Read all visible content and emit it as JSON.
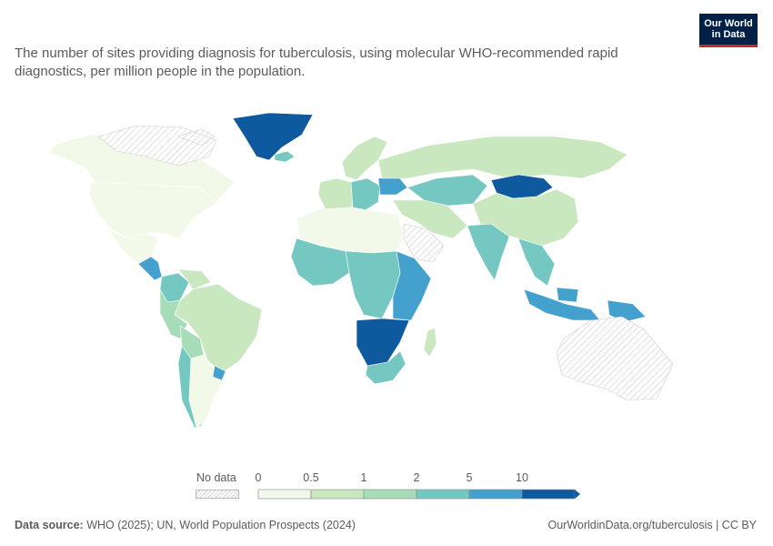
{
  "title": "The number of sites providing diagnosis for tuberculosis, using molecular WHO-recommended rapid diagnostics, per million people in the population.",
  "logo": {
    "line1": "Our World",
    "line2": "in Data"
  },
  "legend": {
    "no_data_label": "No data",
    "ticks": [
      "0",
      "0.5",
      "1",
      "2",
      "5",
      "10"
    ],
    "colors": [
      "#f2f9e8",
      "#c9e8c0",
      "#a6dcb7",
      "#74c8c1",
      "#44a0cc",
      "#0f5a9e"
    ]
  },
  "footer": {
    "source_label": "Data source:",
    "source_text": "WHO (2025); UN, World Population Prospects (2024)",
    "url": "OurWorldinData.org/tuberculosis | CC BY"
  },
  "map_data": {
    "colors": {
      "bin0": "#f2f9e8",
      "bin1": "#c9e8c0",
      "bin2": "#a6dcb7",
      "bin3": "#74c8c1",
      "bin4": "#44a0cc",
      "bin5": "#0f5a9e",
      "nodata": "#e9e9e9"
    },
    "regions": [
      {
        "name": "Canada",
        "bin": "bin0"
      },
      {
        "name": "Canadian Arctic",
        "bin": "nodata"
      },
      {
        "name": "Greenland",
        "bin": "bin5"
      },
      {
        "name": "United States",
        "bin": "bin0"
      },
      {
        "name": "Mexico",
        "bin": "bin0"
      },
      {
        "name": "Central America",
        "bin": "bin4"
      },
      {
        "name": "Colombia",
        "bin": "bin3"
      },
      {
        "name": "Venezuela",
        "bin": "bin1"
      },
      {
        "name": "Brazil",
        "bin": "bin1"
      },
      {
        "name": "Peru",
        "bin": "bin2"
      },
      {
        "name": "Bolivia",
        "bin": "bin2"
      },
      {
        "name": "Chile",
        "bin": "bin3"
      },
      {
        "name": "Argentina",
        "bin": "bin0"
      },
      {
        "name": "Uruguay",
        "bin": "bin4"
      },
      {
        "name": "Iceland",
        "bin": "bin3"
      },
      {
        "name": "Scandinavia",
        "bin": "bin1"
      },
      {
        "name": "Western Europe",
        "bin": "bin1"
      },
      {
        "name": "Eastern Europe",
        "bin": "bin3"
      },
      {
        "name": "Ukraine",
        "bin": "bin4"
      },
      {
        "name": "Russia",
        "bin": "bin1"
      },
      {
        "name": "Kazakhstan",
        "bin": "bin3"
      },
      {
        "name": "Mongolia",
        "bin": "bin5"
      },
      {
        "name": "China",
        "bin": "bin1"
      },
      {
        "name": "India",
        "bin": "bin3"
      },
      {
        "name": "Middle East",
        "bin": "bin1"
      },
      {
        "name": "Saudi Arabia",
        "bin": "nodata"
      },
      {
        "name": "Southeast Asia",
        "bin": "bin3"
      },
      {
        "name": "Indonesia",
        "bin": "bin4"
      },
      {
        "name": "Papua New Guinea",
        "bin": "bin4"
      },
      {
        "name": "Australia",
        "bin": "nodata"
      },
      {
        "name": "North Africa",
        "bin": "bin0"
      },
      {
        "name": "West Africa",
        "bin": "bin3"
      },
      {
        "name": "Central Africa",
        "bin": "bin3"
      },
      {
        "name": "East Africa",
        "bin": "bin4"
      },
      {
        "name": "Southern Africa",
        "bin": "bin5"
      },
      {
        "name": "South Africa",
        "bin": "bin3"
      },
      {
        "name": "Madagascar",
        "bin": "bin1"
      }
    ]
  }
}
